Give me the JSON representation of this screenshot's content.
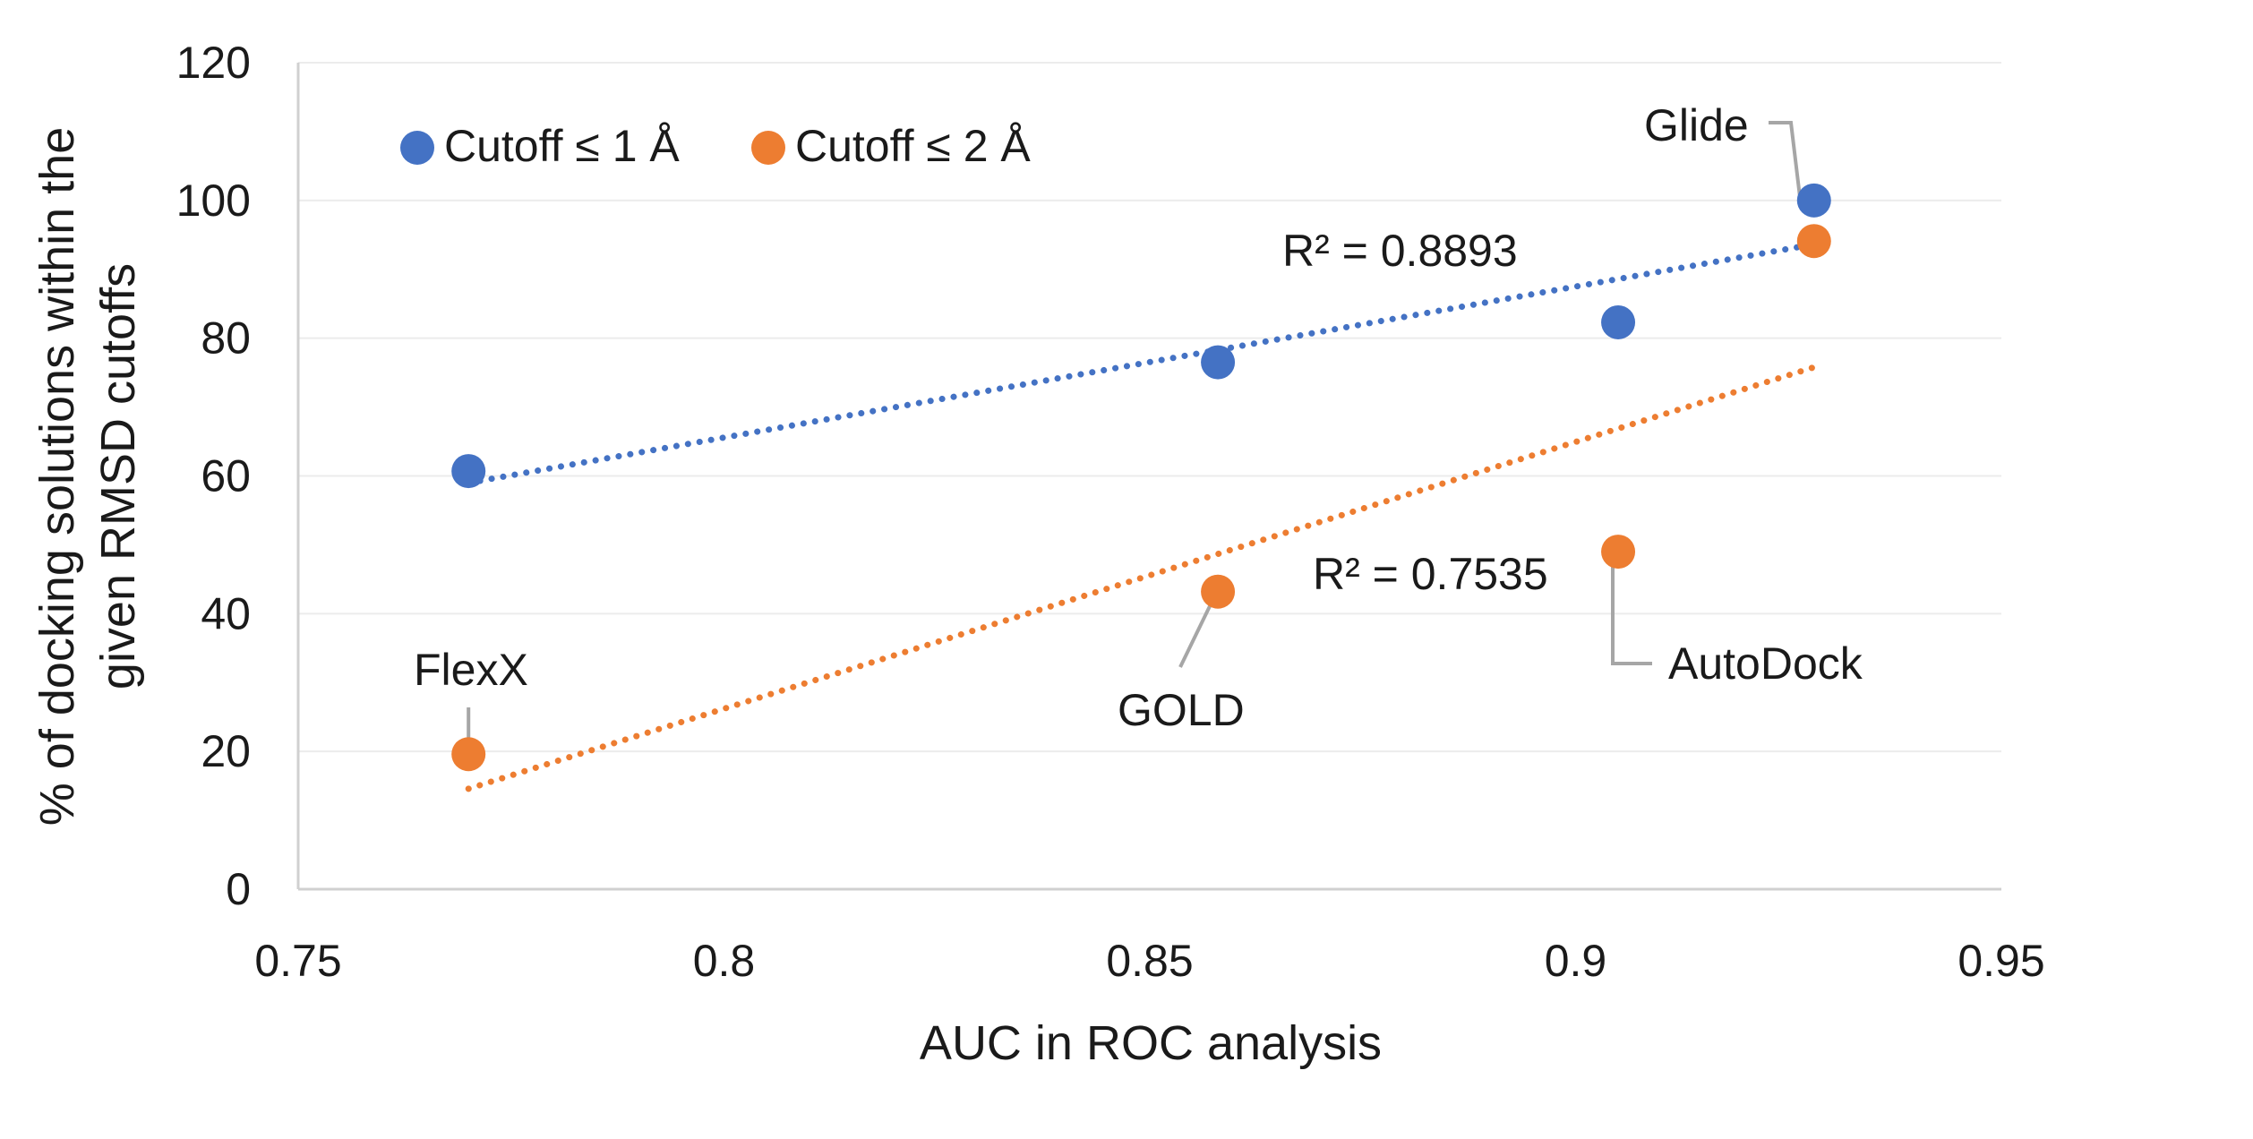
{
  "chart_data": {
    "type": "scatter",
    "title": "",
    "xlabel": "AUC in ROC analysis",
    "ylabel_lines": [
      "% of docking solutions within the",
      "given RMSD cutoffs"
    ],
    "xlim": [
      0.75,
      0.95
    ],
    "ylim": [
      0,
      120
    ],
    "xticks": [
      0.75,
      0.8,
      0.85,
      0.9,
      0.95
    ],
    "xtick_labels": [
      "0.75",
      "0.8",
      "0.85",
      "0.9",
      "0.95"
    ],
    "yticks": [
      0,
      20,
      40,
      60,
      80,
      100,
      120
    ],
    "ytick_labels": [
      "0",
      "20",
      "40",
      "60",
      "80",
      "100",
      "120"
    ],
    "grid": "horizontal",
    "legend_position": "top-left",
    "series": [
      {
        "name": "Cutoff ≤ 1 Å",
        "color": "#4472C4",
        "x": [
          0.77,
          0.858,
          0.905,
          0.928
        ],
        "y": [
          60.7,
          76.5,
          82.3,
          100.0
        ],
        "trendline": {
          "type": "linear",
          "style": "dotted",
          "r2_label": "R² = 0.8893"
        }
      },
      {
        "name": "Cutoff ≤ 2 Å",
        "color": "#ED7D31",
        "x": [
          0.77,
          0.858,
          0.905,
          0.928
        ],
        "y": [
          19.6,
          43.2,
          49.0,
          94.1
        ],
        "trendline": {
          "type": "linear",
          "style": "dotted",
          "r2_label": "R² = 0.7535"
        }
      }
    ],
    "point_annotations": [
      {
        "text": "FlexX",
        "x": 0.77
      },
      {
        "text": "GOLD",
        "x": 0.858
      },
      {
        "text": "AutoDock",
        "x": 0.905
      },
      {
        "text": "Glide",
        "x": 0.928
      }
    ]
  }
}
